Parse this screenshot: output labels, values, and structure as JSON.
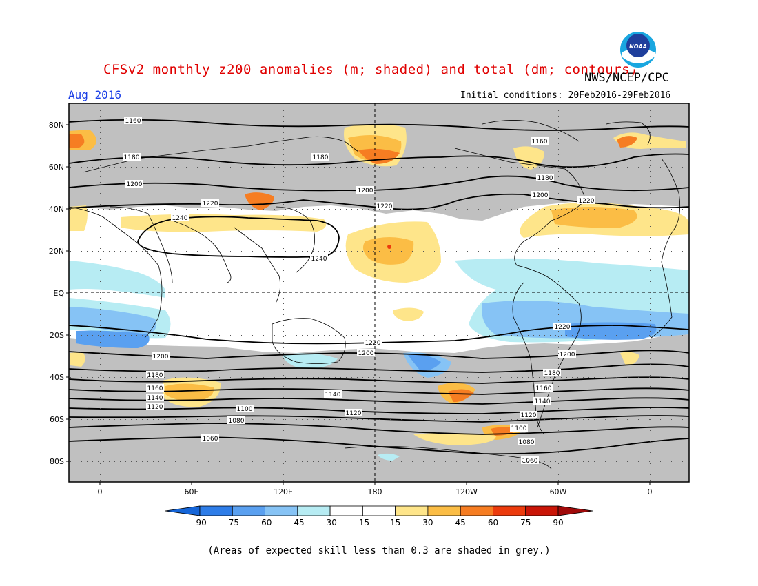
{
  "header": {
    "title": "CFSv2 monthly z200 anomalies (m; shaded) and total (dm; contours)",
    "agency": "NWS/NCEP/CPC",
    "month": "Aug 2016",
    "initial_conditions": "Initial conditions: 20Feb2016-29Feb2016",
    "logo_text": "NOAA"
  },
  "axes": {
    "lat_labels": [
      "80N",
      "60N",
      "40N",
      "20N",
      "EQ",
      "20S",
      "40S",
      "60S",
      "80S"
    ],
    "lon_labels": [
      "0",
      "60E",
      "120E",
      "180",
      "120W",
      "60W",
      "0"
    ]
  },
  "colorbar": {
    "ticks": [
      "-90",
      "-75",
      "-60",
      "-45",
      "-30",
      "-15",
      "15",
      "30",
      "45",
      "60",
      "75",
      "90"
    ],
    "colors": [
      "#1565d8",
      "#2e7de8",
      "#5aa0f0",
      "#86c3f5",
      "#b7ecf3",
      "#ffffff",
      "#ffffff",
      "#fee58a",
      "#fbbd45",
      "#f67d22",
      "#ec3b0d",
      "#c91507",
      "#a00a0a"
    ]
  },
  "colors": {
    "grey_mask": "#c0c0c0",
    "contour": "#000000"
  },
  "contour_labels": [
    "1160",
    "1180",
    "1200",
    "1220",
    "1240",
    "1100",
    "1080",
    "1060",
    "1140",
    "1120"
  ],
  "footnote": "(Areas of expected skill less than 0.3 are shaded in grey.)"
}
